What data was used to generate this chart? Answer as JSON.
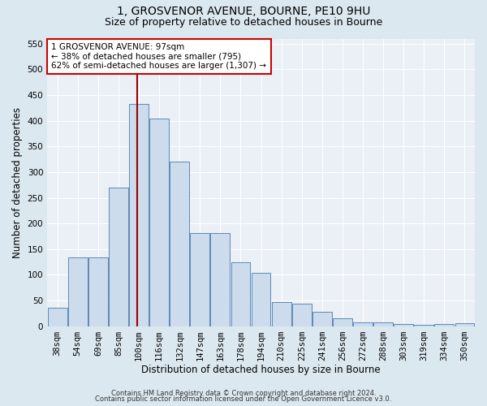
{
  "title_line1": "1, GROSVENOR AVENUE, BOURNE, PE10 9HU",
  "title_line2": "Size of property relative to detached houses in Bourne",
  "xlabel": "Distribution of detached houses by size in Bourne",
  "ylabel": "Number of detached properties",
  "footer_line1": "Contains HM Land Registry data © Crown copyright and database right 2024.",
  "footer_line2": "Contains public sector information licensed under the Open Government Licence v3.0.",
  "categories": [
    "38sqm",
    "54sqm",
    "69sqm",
    "85sqm",
    "100sqm",
    "116sqm",
    "132sqm",
    "147sqm",
    "163sqm",
    "178sqm",
    "194sqm",
    "210sqm",
    "225sqm",
    "241sqm",
    "256sqm",
    "272sqm",
    "288sqm",
    "303sqm",
    "319sqm",
    "334sqm",
    "350sqm"
  ],
  "values": [
    35,
    133,
    133,
    270,
    433,
    405,
    320,
    182,
    182,
    125,
    103,
    46,
    44,
    28,
    15,
    7,
    8,
    4,
    3,
    4,
    5
  ],
  "bar_color": "#ccdcec",
  "bar_edge_color": "#4a7aaa",
  "vline_color": "#990000",
  "annotation_text": "1 GROSVENOR AVENUE: 97sqm\n← 38% of detached houses are smaller (795)\n62% of semi-detached houses are larger (1,307) →",
  "annotation_box_color": "#ffffff",
  "annotation_box_edge": "#cc0000",
  "ylim": [
    0,
    560
  ],
  "yticks": [
    0,
    50,
    100,
    150,
    200,
    250,
    300,
    350,
    400,
    450,
    500,
    550
  ],
  "bg_color": "#dce8f0",
  "plot_bg_color": "#eaf0f6",
  "grid_color": "#ffffff",
  "title_fontsize": 10,
  "subtitle_fontsize": 9,
  "axis_label_fontsize": 8.5,
  "tick_fontsize": 7.5,
  "footer_fontsize": 6,
  "annotation_fontsize": 7.5
}
